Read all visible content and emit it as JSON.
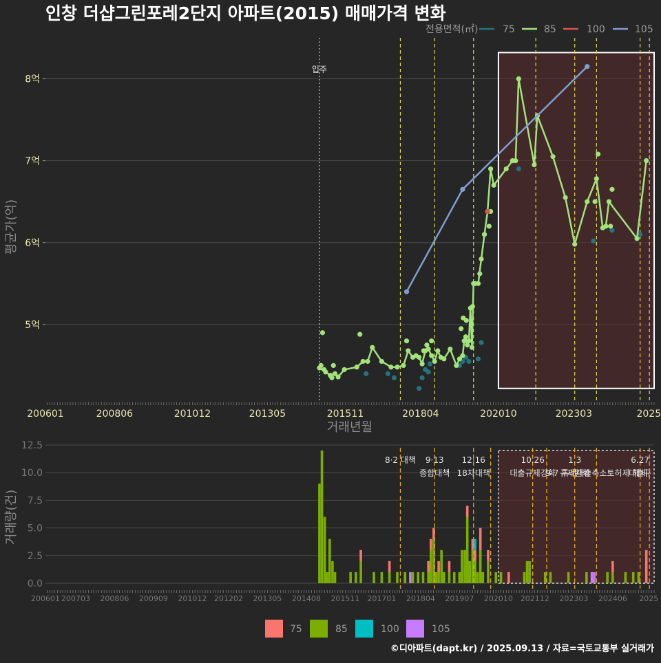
{
  "title": "인창 더샵그린포레2단지 아파트(2015) 매매가격 변화",
  "caption": "©디아파트(dapt.kr) / 2025.09.13 / 자료=국토교통부 실거래가",
  "colors": {
    "bg": "#262626",
    "grid": "#4a4a4a",
    "s75": "#26727e",
    "s85": "#a3e37c",
    "s100": "#e05252",
    "s105": "#7f9fcf",
    "b75": "#f8766d",
    "b85": "#7cae00",
    "b100": "#00bfc4",
    "b105": "#c77cff",
    "marker": "#dddd44",
    "box_fill": "#5a2a2a"
  },
  "chart_data": [
    {
      "type": "line",
      "xlabel": "거래년월",
      "ylabel": "평균가(억)",
      "xlim": [
        2006.2,
        2025.75
      ],
      "ylim": [
        4.05,
        8.5
      ],
      "x_ticks": [
        {
          "label": "200601",
          "x": 2006.0
        },
        {
          "label": "200806",
          "x": 2008.42
        },
        {
          "label": "201012",
          "x": 2010.92
        },
        {
          "label": "201305",
          "x": 2013.33
        },
        {
          "label": "201511",
          "x": 2015.83
        },
        {
          "label": "201804",
          "x": 2018.25
        },
        {
          "label": "202010",
          "x": 2020.75
        },
        {
          "label": "202303",
          "x": 2023.17
        },
        {
          "label": "2025",
          "x": 2025.58
        }
      ],
      "y_ticks": [
        {
          "label": "5억",
          "value": 5
        },
        {
          "label": "6억",
          "value": 6
        },
        {
          "label": "7억",
          "value": 7
        },
        {
          "label": "8억",
          "value": 8
        }
      ],
      "legend": {
        "title": "전용면적(㎡)",
        "position": "top-right",
        "items": [
          "75",
          "85",
          "100",
          "105"
        ]
      },
      "annotations": [
        {
          "label": "입주",
          "x": 2015.0
        }
      ],
      "marker_lines": [
        2017.6,
        2018.7,
        2019.95,
        2021.95,
        2023.2,
        2023.9,
        2025.3,
        2025.6
      ],
      "highlight_range": {
        "x": [
          2020.75,
          2025.75
        ],
        "y": [
          4.22,
          8.32
        ]
      },
      "series": [
        {
          "name": "75",
          "points": [
            [
              2016.5,
              4.4
            ],
            [
              2017.2,
              4.4
            ],
            [
              2017.4,
              4.35
            ],
            [
              2018.2,
              4.22
            ],
            [
              2018.3,
              4.35
            ],
            [
              2018.4,
              4.45
            ],
            [
              2018.5,
              4.42
            ],
            [
              2018.55,
              4.52
            ],
            [
              2019.5,
              4.5
            ],
            [
              2019.6,
              4.55
            ],
            [
              2019.7,
              4.6
            ],
            [
              2019.8,
              4.55
            ],
            [
              2020.1,
              4.58
            ],
            [
              2020.2,
              4.78
            ],
            [
              2021.4,
              6.9
            ],
            [
              2023.8,
              6.02
            ],
            [
              2024.4,
              6.15
            ],
            [
              2025.3,
              6.1
            ]
          ]
        },
        {
          "name": "85",
          "line": [
            [
              2015.0,
              4.47
            ],
            [
              2015.2,
              4.42
            ],
            [
              2015.35,
              4.38
            ],
            [
              2015.5,
              4.4
            ],
            [
              2015.6,
              4.36
            ],
            [
              2015.8,
              4.45
            ],
            [
              2016.2,
              4.48
            ],
            [
              2016.4,
              4.55
            ],
            [
              2016.55,
              4.55
            ],
            [
              2016.7,
              4.72
            ],
            [
              2017.0,
              4.55
            ],
            [
              2017.3,
              4.48
            ],
            [
              2017.5,
              4.48
            ],
            [
              2017.7,
              4.5
            ],
            [
              2017.85,
              4.68
            ],
            [
              2018.0,
              4.6
            ],
            [
              2018.1,
              4.62
            ],
            [
              2018.2,
              4.6
            ],
            [
              2018.3,
              4.52
            ],
            [
              2018.4,
              4.68
            ],
            [
              2018.5,
              4.7
            ],
            [
              2018.6,
              4.62
            ],
            [
              2018.7,
              4.55
            ],
            [
              2018.8,
              4.68
            ],
            [
              2018.9,
              4.6
            ],
            [
              2019.0,
              4.58
            ],
            [
              2019.2,
              4.7
            ],
            [
              2019.4,
              4.5
            ],
            [
              2019.5,
              4.58
            ],
            [
              2019.6,
              4.62
            ],
            [
              2019.65,
              4.8
            ],
            [
              2019.7,
              4.85
            ],
            [
              2019.75,
              4.75
            ],
            [
              2019.8,
              4.8
            ],
            [
              2019.85,
              5.2
            ],
            [
              2019.9,
              4.72
            ],
            [
              2019.95,
              5.5
            ],
            [
              2020.0,
              5.5
            ],
            [
              2020.1,
              5.5
            ],
            [
              2020.2,
              5.8
            ],
            [
              2020.3,
              6.1
            ],
            [
              2020.4,
              6.38
            ],
            [
              2020.5,
              6.9
            ],
            [
              2020.6,
              6.7
            ],
            [
              2021.0,
              6.9
            ],
            [
              2021.2,
              7.0
            ],
            [
              2021.3,
              7.0
            ],
            [
              2021.4,
              8.0
            ],
            [
              2021.9,
              6.95
            ],
            [
              2022.0,
              7.55
            ],
            [
              2022.5,
              7.05
            ],
            [
              2022.9,
              6.55
            ],
            [
              2023.2,
              5.98
            ],
            [
              2023.6,
              6.5
            ],
            [
              2023.9,
              6.78
            ],
            [
              2024.1,
              6.18
            ],
            [
              2024.2,
              6.2
            ],
            [
              2024.3,
              6.5
            ],
            [
              2025.2,
              6.05
            ],
            [
              2025.5,
              7.0
            ]
          ],
          "extra_points": [
            [
              2015.1,
              4.9
            ],
            [
              2015.05,
              4.5
            ],
            [
              2015.15,
              4.45
            ],
            [
              2015.4,
              4.35
            ],
            [
              2015.45,
              4.5
            ],
            [
              2016.3,
              4.88
            ],
            [
              2017.8,
              4.8
            ],
            [
              2018.45,
              4.75
            ],
            [
              2018.6,
              4.8
            ],
            [
              2018.35,
              4.68
            ],
            [
              2019.55,
              4.95
            ],
            [
              2019.62,
              5.08
            ],
            [
              2019.72,
              5.05
            ],
            [
              2019.92,
              5.22
            ],
            [
              2020.15,
              5.62
            ],
            [
              2020.45,
              6.2
            ],
            [
              2020.5,
              6.38
            ],
            [
              2023.95,
              7.08
            ],
            [
              2023.85,
              6.5
            ],
            [
              2024.4,
              6.65
            ],
            [
              2024.35,
              6.2
            ]
          ]
        },
        {
          "name": "100",
          "points": [
            [
              2020.4,
              6.38
            ]
          ]
        },
        {
          "name": "105",
          "line": [
            [
              2017.8,
              5.4
            ],
            [
              2019.6,
              6.65
            ],
            [
              2023.6,
              8.15
            ]
          ]
        }
      ]
    },
    {
      "type": "bar",
      "ylabel": "거래량(건)",
      "xlim": [
        2006.2,
        2025.75
      ],
      "ylim": [
        0,
        12.5
      ],
      "x_ticks": [
        {
          "label": "200601",
          "x": 2006.0
        },
        {
          "label": "200703",
          "x": 2007.17
        },
        {
          "label": "200806",
          "x": 2008.42
        },
        {
          "label": "200909",
          "x": 2009.67
        },
        {
          "label": "201012",
          "x": 2010.92
        },
        {
          "label": "201202",
          "x": 2012.08
        },
        {
          "label": "201305",
          "x": 2013.33
        },
        {
          "label": "201408",
          "x": 2014.58
        },
        {
          "label": "201511",
          "x": 2015.83
        },
        {
          "label": "201701",
          "x": 2017.0
        },
        {
          "label": "201804",
          "x": 2018.25
        },
        {
          "label": "201907",
          "x": 2019.5
        },
        {
          "label": "202010",
          "x": 2020.75
        },
        {
          "label": "202112",
          "x": 2021.92
        },
        {
          "label": "202303",
          "x": 2023.17
        },
        {
          "label": "202406",
          "x": 2024.42
        },
        {
          "label": "2025",
          "x": 2025.58
        }
      ],
      "y_ticks": [
        {
          "label": "0.0",
          "value": 0
        },
        {
          "label": "2.5",
          "value": 2.5
        },
        {
          "label": "5.0",
          "value": 5
        },
        {
          "label": "7.5",
          "value": 7.5
        },
        {
          "label": "10.0",
          "value": 10
        },
        {
          "label": "12.5",
          "value": 12.5
        }
      ],
      "legend": {
        "position": "bottom",
        "items": [
          "75",
          "85",
          "100",
          "105"
        ]
      },
      "highlight_range": {
        "x": [
          2020.75,
          2025.75
        ],
        "y": [
          0,
          12
        ]
      },
      "policy_lines": [
        {
          "x": 2017.6,
          "label1": "8·2 대책",
          "label2": ""
        },
        {
          "x": 2018.7,
          "label1": "9·13",
          "label2": "종합대책"
        },
        {
          "x": 2019.95,
          "label1": "12·16",
          "label2": "18차대책"
        },
        {
          "x": 2020.5,
          "label1": "",
          "label2": ""
        },
        {
          "x": 2021.85,
          "label1": "10.26",
          "label2": "대출규제강화"
        },
        {
          "x": 2022.3,
          "label1": "",
          "label2": ""
        },
        {
          "x": 2023.2,
          "label1": "1.3",
          "label2": "규제완화"
        },
        {
          "x": 2023.9,
          "label1": "",
          "label2": "9·7 특례대출축소토허제 해제"
        },
        {
          "x": 2025.3,
          "label1": "6.27",
          "label2": "대출규"
        },
        {
          "x": 2025.6,
          "label1": "",
          "label2": ""
        }
      ],
      "stacks": [
        [
          2015.0,
          0,
          9,
          0,
          0
        ],
        [
          2015.08,
          0,
          12,
          0,
          0
        ],
        [
          2015.17,
          0,
          6,
          0,
          0
        ],
        [
          2015.25,
          0,
          1,
          0,
          0
        ],
        [
          2015.33,
          0,
          4,
          0,
          0
        ],
        [
          2015.42,
          0,
          2,
          0,
          0
        ],
        [
          2015.5,
          0,
          1,
          0,
          0
        ],
        [
          2016.0,
          0,
          1,
          0,
          0
        ],
        [
          2016.17,
          0,
          1,
          0,
          0
        ],
        [
          2016.33,
          1,
          2,
          0,
          0
        ],
        [
          2016.75,
          0,
          1,
          0,
          0
        ],
        [
          2017.0,
          0,
          1,
          0,
          0
        ],
        [
          2017.25,
          1,
          1,
          0,
          0
        ],
        [
          2017.5,
          0,
          1,
          0,
          0
        ],
        [
          2017.75,
          0,
          1,
          0,
          0
        ],
        [
          2017.92,
          0,
          0,
          0,
          1
        ],
        [
          2018.0,
          0,
          1,
          0,
          0
        ],
        [
          2018.17,
          0,
          1,
          0,
          0
        ],
        [
          2018.33,
          0,
          1,
          0,
          0
        ],
        [
          2018.5,
          1,
          1,
          0,
          0
        ],
        [
          2018.58,
          1,
          3,
          0,
          0
        ],
        [
          2018.67,
          1,
          4,
          0,
          0
        ],
        [
          2018.75,
          0,
          1,
          0,
          0
        ],
        [
          2018.83,
          1,
          1,
          0,
          0
        ],
        [
          2018.92,
          0,
          3,
          0,
          0
        ],
        [
          2019.0,
          0,
          1,
          0,
          0
        ],
        [
          2019.17,
          1,
          1,
          0,
          0
        ],
        [
          2019.33,
          0,
          1,
          0,
          0
        ],
        [
          2019.5,
          0,
          1,
          0,
          0
        ],
        [
          2019.58,
          0,
          3,
          0,
          0
        ],
        [
          2019.67,
          0,
          3,
          0,
          0
        ],
        [
          2019.75,
          1,
          6,
          0,
          0
        ],
        [
          2019.83,
          0,
          2,
          0,
          0
        ],
        [
          2019.92,
          1,
          3,
          0,
          0
        ],
        [
          2020.0,
          1,
          2,
          1,
          0
        ],
        [
          2020.08,
          0,
          1,
          0,
          0
        ],
        [
          2020.17,
          2,
          3,
          0,
          0
        ],
        [
          2020.25,
          0,
          1,
          0,
          0
        ],
        [
          2020.42,
          1,
          2,
          0,
          0
        ],
        [
          2020.67,
          0,
          1,
          0,
          0
        ],
        [
          2020.83,
          0,
          1,
          0,
          0
        ],
        [
          2021.08,
          1,
          0,
          0,
          0
        ],
        [
          2021.58,
          0,
          1,
          0,
          0
        ],
        [
          2021.67,
          0,
          2,
          0,
          0
        ],
        [
          2021.75,
          0,
          2,
          0,
          0
        ],
        [
          2022.25,
          0,
          1,
          0,
          0
        ],
        [
          2022.42,
          0,
          1,
          0,
          0
        ],
        [
          2023.0,
          0,
          1,
          0,
          0
        ],
        [
          2023.58,
          0,
          1,
          0,
          0
        ],
        [
          2023.75,
          0,
          0,
          0,
          1
        ],
        [
          2023.83,
          0,
          0,
          0,
          1
        ],
        [
          2024.25,
          0,
          1,
          0,
          0
        ],
        [
          2024.42,
          1,
          1,
          0,
          0
        ],
        [
          2024.83,
          0,
          1,
          0,
          0
        ],
        [
          2025.08,
          0,
          1,
          0,
          0
        ],
        [
          2025.25,
          0,
          1,
          0,
          0
        ],
        [
          2025.5,
          3,
          0,
          0,
          0
        ]
      ]
    }
  ]
}
